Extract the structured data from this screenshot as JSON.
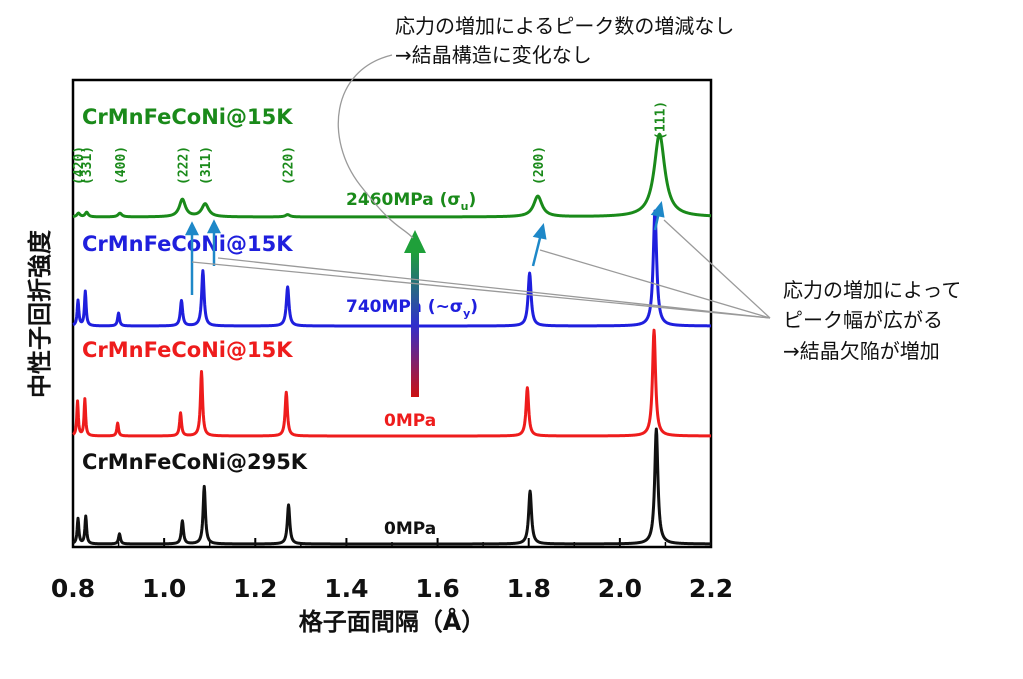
{
  "chart_data": {
    "type": "line",
    "xlabel": "格子面間隔（Å）",
    "ylabel": "中性子回折強度",
    "xlim": [
      0.8,
      2.2
    ],
    "xticks": [
      "0.8",
      "1.0",
      "1.2",
      "1.4",
      "1.6",
      "1.8",
      "2.0",
      "2.2"
    ],
    "grid": false,
    "series": [
      {
        "name": "CrMnFeCoNi@15K",
        "stress": "2460MPa (σ",
        "stress_sub": "u",
        "stress_close": ")",
        "color": "#1a8a1a",
        "peaks": [
          {
            "x": 0.812,
            "h": 0.08,
            "w": 0.004
          },
          {
            "x": 0.83,
            "h": 0.1,
            "w": 0.004
          },
          {
            "x": 0.903,
            "h": 0.08,
            "w": 0.005
          },
          {
            "x": 1.04,
            "h": 0.38,
            "w": 0.008
          },
          {
            "x": 1.09,
            "h": 0.28,
            "w": 0.009
          },
          {
            "x": 1.271,
            "h": 0.05,
            "w": 0.006
          },
          {
            "x": 1.82,
            "h": 0.45,
            "w": 0.011
          },
          {
            "x": 2.087,
            "h": 1.8,
            "w": 0.014
          }
        ]
      },
      {
        "name": "CrMnFeCoNi@15K",
        "stress": "740MPa (~σ",
        "stress_sub": "y",
        "stress_close": ")",
        "color": "#1f1fdd",
        "peaks": [
          {
            "x": 0.811,
            "h": 0.55,
            "w": 0.0022
          },
          {
            "x": 0.827,
            "h": 0.75,
            "w": 0.0022
          },
          {
            "x": 0.9,
            "h": 0.28,
            "w": 0.0025
          },
          {
            "x": 1.038,
            "h": 0.55,
            "w": 0.003
          },
          {
            "x": 1.085,
            "h": 1.2,
            "w": 0.0032
          },
          {
            "x": 1.271,
            "h": 0.85,
            "w": 0.0035
          },
          {
            "x": 1.802,
            "h": 1.15,
            "w": 0.004
          },
          {
            "x": 2.077,
            "h": 2.5,
            "w": 0.0045
          }
        ]
      },
      {
        "name": "CrMnFeCoNi@15K",
        "stress": "0MPa",
        "stress_sub": "",
        "stress_close": "",
        "color": "#ee1c1c",
        "peaks": [
          {
            "x": 0.81,
            "h": 0.75,
            "w": 0.002
          },
          {
            "x": 0.826,
            "h": 0.8,
            "w": 0.002
          },
          {
            "x": 0.898,
            "h": 0.28,
            "w": 0.0022
          },
          {
            "x": 1.036,
            "h": 0.5,
            "w": 0.0025
          },
          {
            "x": 1.082,
            "h": 1.4,
            "w": 0.0028
          },
          {
            "x": 1.268,
            "h": 0.95,
            "w": 0.003
          },
          {
            "x": 1.797,
            "h": 1.05,
            "w": 0.0035
          },
          {
            "x": 2.075,
            "h": 2.3,
            "w": 0.004
          }
        ]
      },
      {
        "name": "CrMnFeCoNi@295K",
        "stress": "0MPa",
        "stress_sub": "",
        "stress_close": "",
        "color": "#111111",
        "peaks": [
          {
            "x": 0.811,
            "h": 0.55,
            "w": 0.0022
          },
          {
            "x": 0.828,
            "h": 0.6,
            "w": 0.0022
          },
          {
            "x": 0.902,
            "h": 0.22,
            "w": 0.0025
          },
          {
            "x": 1.04,
            "h": 0.5,
            "w": 0.0028
          },
          {
            "x": 1.088,
            "h": 1.25,
            "w": 0.003
          },
          {
            "x": 1.273,
            "h": 0.85,
            "w": 0.0032
          },
          {
            "x": 1.803,
            "h": 1.15,
            "w": 0.0038
          },
          {
            "x": 2.08,
            "h": 2.5,
            "w": 0.0042
          }
        ]
      }
    ],
    "hkl_labels": [
      {
        "text": "(420)",
        "x": 0.811
      },
      {
        "text": "(331)",
        "x": 0.829
      },
      {
        "text": "(400)",
        "x": 0.903
      },
      {
        "text": "(222)",
        "x": 1.04
      },
      {
        "text": "(311)",
        "x": 1.09
      },
      {
        "text": "(220)",
        "x": 1.271
      },
      {
        "text": "(200)",
        "x": 1.82
      },
      {
        "text": "(111)",
        "x": 2.087
      }
    ],
    "annotations": {
      "top_line1": "応力の増加によるピーク数の増減なし",
      "top_line2": "→結晶構造に変化なし",
      "right_line1": "応力の増加によって",
      "right_line2": "ピーク幅が広がる",
      "right_line3": "→結晶欠陥が増加"
    }
  }
}
